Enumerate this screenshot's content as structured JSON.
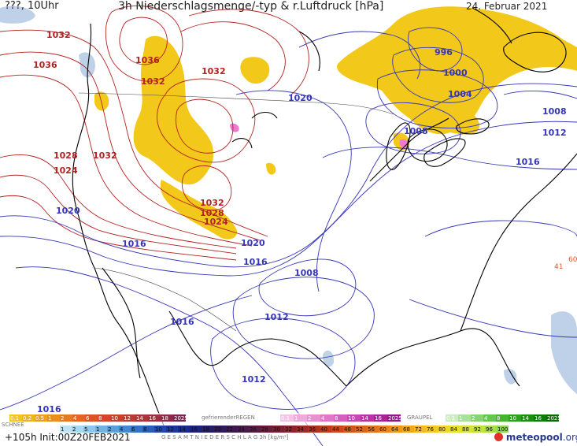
{
  "header": {
    "left": "???, 10Uhr",
    "title": "3h Niederschlagsmenge/-typ & r.Luftdruck [hPa]",
    "date": "24. Februar 2021"
  },
  "footer": {
    "run": "+105h Init:00Z20FEB2021",
    "brand": "meteopool",
    "brand_suffix": ".org"
  },
  "colors": {
    "isobar_high": "#b22222",
    "isobar_low": "#3535b8",
    "precip_rain": "#f2c81a",
    "precip_snow": "#b9cde6",
    "precip_freezing": "#ee7ad0",
    "coast": "#000000",
    "borders": "#444444"
  },
  "legend": {
    "schnee_label": "SCHNEE",
    "schnee_values": [
      "0.1",
      "0.2",
      "0.5",
      "1",
      "2",
      "4",
      "6",
      "8",
      "10",
      "12",
      "14",
      "16",
      "18",
      "2025+"
    ],
    "gefrierender_label": "gefrierenderREGEN",
    "gefrierender_values": [
      "0.1",
      "1",
      "2",
      "4",
      "8",
      "10",
      "14",
      "16",
      "2025+"
    ],
    "graupel_label": "GRAUPEL",
    "graupel_values": [
      "0.1",
      "1",
      "2",
      "4",
      "8",
      "10",
      "14",
      "16",
      "2025+"
    ],
    "gesamt_label": "G E S A M T N I E D E R S C H L A G  3h  [kg/m²]",
    "gesamt_values": [
      "1",
      "2",
      "5",
      "1",
      "2",
      "4",
      "6",
      "8",
      "10",
      "12",
      "14",
      "16",
      "18",
      "20",
      "22",
      "24",
      "26",
      "28",
      "30",
      "32",
      "34",
      "36",
      "40",
      "44",
      "48",
      "52",
      "56",
      "60",
      "64",
      "68",
      "72",
      "76",
      "80",
      "84",
      "88",
      "92",
      "96",
      "100"
    ]
  },
  "isobar_labels": [
    {
      "text": "1032",
      "type": "high"
    },
    {
      "text": "1036",
      "type": "high"
    },
    {
      "text": "1036",
      "type": "high"
    },
    {
      "text": "1032",
      "type": "high"
    },
    {
      "text": "1032",
      "type": "high"
    },
    {
      "text": "1028",
      "type": "high"
    },
    {
      "text": "1032",
      "type": "high"
    },
    {
      "text": "1024",
      "type": "high"
    },
    {
      "text": "1032",
      "type": "high"
    },
    {
      "text": "1028",
      "type": "high"
    },
    {
      "text": "1024",
      "type": "high"
    },
    {
      "text": "1020",
      "type": "low"
    },
    {
      "text": "1020",
      "type": "low"
    },
    {
      "text": "1016",
      "type": "low"
    },
    {
      "text": "1020",
      "type": "low"
    },
    {
      "text": "1016",
      "type": "low"
    },
    {
      "text": "1008",
      "type": "low"
    },
    {
      "text": "1016",
      "type": "low"
    },
    {
      "text": "1012",
      "type": "low"
    },
    {
      "text": "1012",
      "type": "low"
    },
    {
      "text": "1016",
      "type": "low"
    },
    {
      "text": "996",
      "type": "low"
    },
    {
      "text": "1000",
      "type": "low"
    },
    {
      "text": "1004",
      "type": "low"
    },
    {
      "text": "1008",
      "type": "low"
    },
    {
      "text": "1008",
      "type": "low"
    },
    {
      "text": "1012",
      "type": "low"
    },
    {
      "text": "1016",
      "type": "low"
    }
  ],
  "edge_labels": [
    "60",
    "41"
  ]
}
